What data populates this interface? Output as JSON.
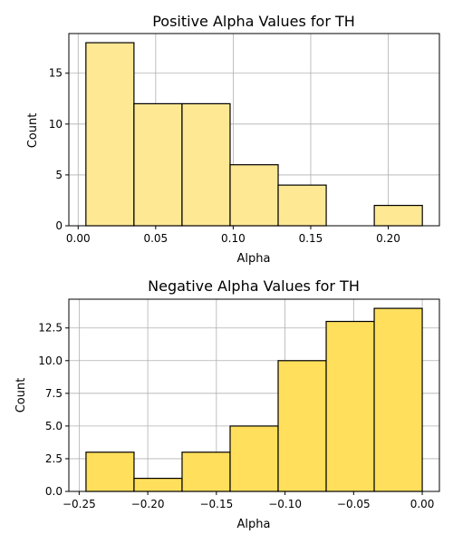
{
  "chart_data": [
    {
      "type": "bar",
      "title": "Positive Alpha Values for TH",
      "xlabel": "Alpha",
      "ylabel": "Count",
      "bin_edges": [
        0.005,
        0.036,
        0.067,
        0.098,
        0.129,
        0.16,
        0.191,
        0.222
      ],
      "values": [
        18,
        12,
        12,
        6,
        4,
        0,
        2
      ],
      "xlim": [
        -0.006,
        0.233
      ],
      "ylim": [
        0,
        18.9
      ],
      "xticks": [
        0.0,
        0.05,
        0.1,
        0.15,
        0.2
      ],
      "xtick_labels": [
        "0.00",
        "0.05",
        "0.10",
        "0.15",
        "0.20"
      ],
      "yticks": [
        0,
        5,
        10,
        15
      ],
      "ytick_labels": [
        "0",
        "5",
        "10",
        "15"
      ],
      "grid": true,
      "bar_color": "#ffe894",
      "edge_color": "#000000"
    },
    {
      "type": "bar",
      "title": "Negative Alpha Values for TH",
      "xlabel": "Alpha",
      "ylabel": "Count",
      "bin_edges": [
        -0.245,
        -0.21,
        -0.175,
        -0.14,
        -0.105,
        -0.07,
        -0.035,
        0.0
      ],
      "values": [
        3,
        1,
        3,
        5,
        10,
        13,
        14
      ],
      "xlim": [
        -0.2575,
        0.0125
      ],
      "ylim": [
        0,
        14.7
      ],
      "xticks": [
        -0.25,
        -0.2,
        -0.15,
        -0.1,
        -0.05,
        0.0
      ],
      "xtick_labels": [
        "−0.25",
        "−0.20",
        "−0.15",
        "−0.10",
        "−0.05",
        "0.00"
      ],
      "yticks": [
        0,
        2.5,
        5,
        7.5,
        10,
        12.5
      ],
      "ytick_labels": [
        "0.0",
        "2.5",
        "5.0",
        "7.5",
        "10.0",
        "12.5"
      ],
      "grid": true,
      "bar_color": "#ffdf5c",
      "edge_color": "#000000"
    }
  ]
}
